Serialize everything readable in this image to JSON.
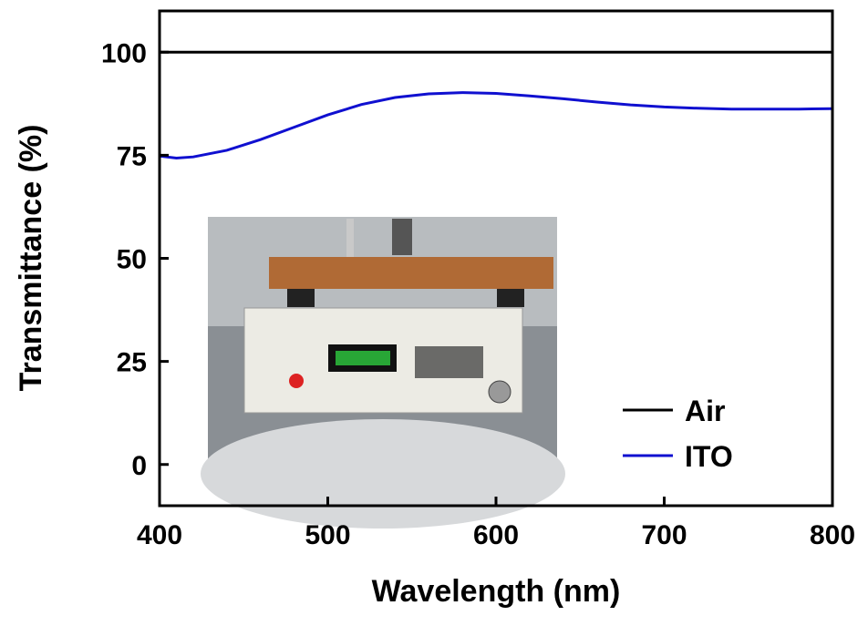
{
  "chart_data": {
    "type": "line",
    "x_label": "Wavelength (nm)",
    "y_label": "Transmittance (%)",
    "x": [
      400,
      410,
      420,
      440,
      460,
      480,
      500,
      520,
      540,
      560,
      580,
      600,
      620,
      640,
      660,
      680,
      700,
      720,
      740,
      760,
      780,
      800
    ],
    "series": [
      {
        "name": "Air",
        "color": "#000000",
        "values": [
          100,
          100,
          100,
          100,
          100,
          100,
          100,
          100,
          100,
          100,
          100,
          100,
          100,
          100,
          100,
          100,
          100,
          100,
          100,
          100,
          100,
          100
        ]
      },
      {
        "name": "ITO",
        "color": "#1010d0",
        "values": [
          74.8,
          74.3,
          74.6,
          76.2,
          78.8,
          81.8,
          84.8,
          87.3,
          89.0,
          89.9,
          90.2,
          90.0,
          89.4,
          88.7,
          87.9,
          87.2,
          86.7,
          86.4,
          86.2,
          86.2,
          86.2,
          86.3
        ]
      }
    ],
    "xlim": [
      400,
      800
    ],
    "xticks": [
      400,
      500,
      600,
      700,
      800
    ],
    "ylim": [
      -10,
      110
    ],
    "yticks": [
      0,
      25,
      50,
      75,
      100
    ],
    "legend": "lower right"
  }
}
